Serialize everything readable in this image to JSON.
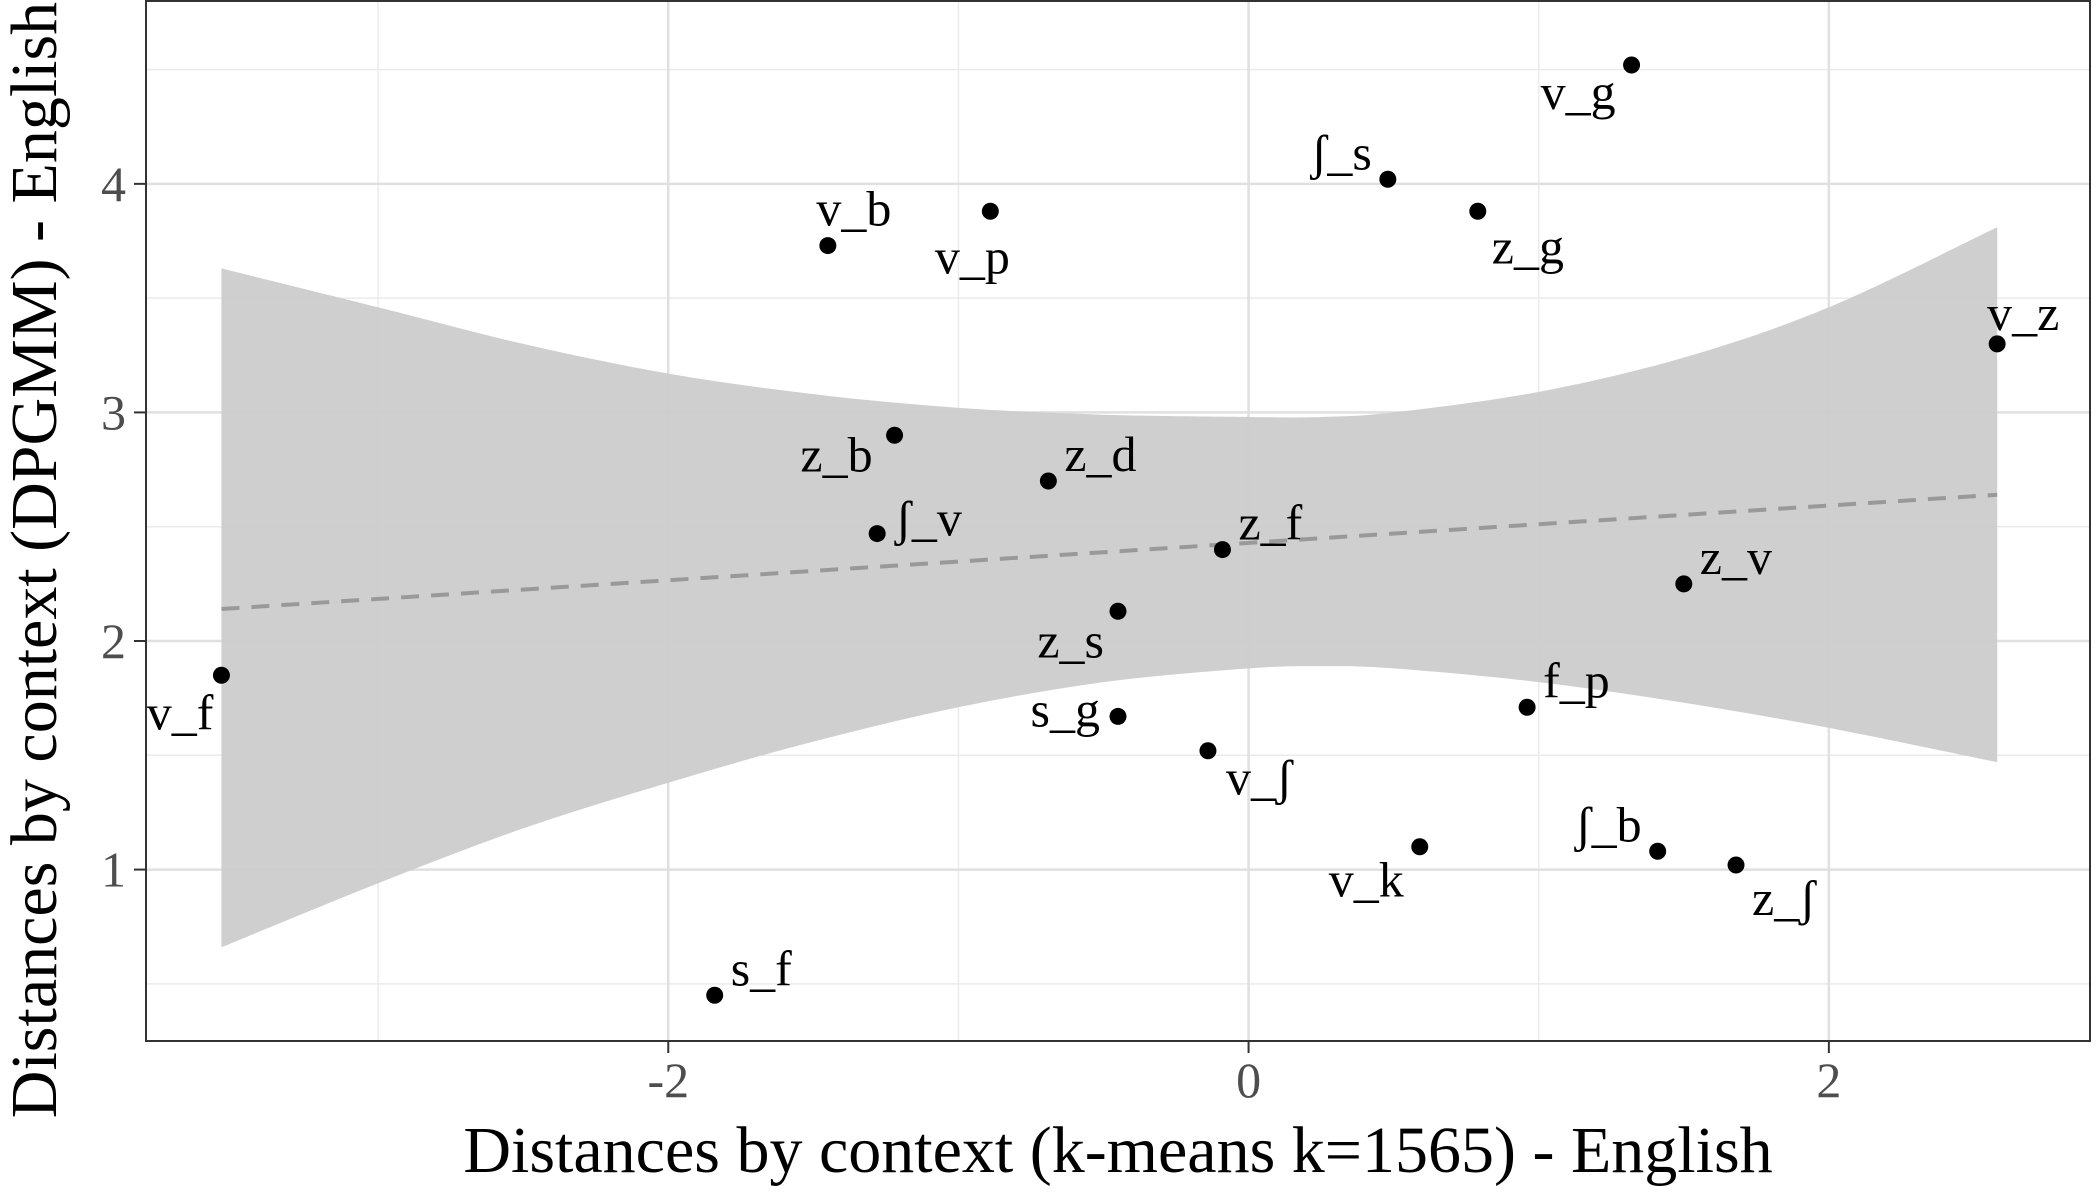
{
  "chart_data": {
    "type": "scatter",
    "xlabel": "Distances by context (k-means k=1565) - English",
    "ylabel": "Distances by context (DPGMM) - English",
    "xlim": [
      -3.8,
      2.9
    ],
    "ylim": [
      0.25,
      4.8
    ],
    "x_ticks": [
      -2,
      0,
      2
    ],
    "x_tick_labels": [
      "-2",
      "0",
      "2"
    ],
    "y_ticks": [
      1,
      2,
      3,
      4
    ],
    "y_tick_labels": [
      "1",
      "2",
      "3",
      "4"
    ],
    "grid": true,
    "legend": "none",
    "points": [
      {
        "label": "v_f",
        "x": -3.54,
        "y": 1.85
      },
      {
        "label": "s_f",
        "x": -1.84,
        "y": 0.45
      },
      {
        "label": "v_b",
        "x": -1.45,
        "y": 3.73
      },
      {
        "label": "v_p",
        "x": -0.89,
        "y": 3.88
      },
      {
        "label": "z_b",
        "x": -1.22,
        "y": 2.9
      },
      {
        "label": "ʃ_v",
        "x": -1.28,
        "y": 2.47
      },
      {
        "label": "z_d",
        "x": -0.69,
        "y": 2.7
      },
      {
        "label": "z_s",
        "x": -0.45,
        "y": 2.13
      },
      {
        "label": "s_g",
        "x": -0.45,
        "y": 1.67
      },
      {
        "label": "z_f",
        "x": -0.09,
        "y": 2.4
      },
      {
        "label": "v_ʃ",
        "x": -0.14,
        "y": 1.52
      },
      {
        "label": "ʃ_s",
        "x": 0.48,
        "y": 4.02
      },
      {
        "label": "z_g",
        "x": 0.79,
        "y": 3.88
      },
      {
        "label": "v_g",
        "x": 1.32,
        "y": 4.52
      },
      {
        "label": "v_k",
        "x": 0.59,
        "y": 1.1
      },
      {
        "label": "f_p",
        "x": 0.96,
        "y": 1.71
      },
      {
        "label": "ʃ_b",
        "x": 1.41,
        "y": 1.08
      },
      {
        "label": "z_v",
        "x": 1.5,
        "y": 2.25
      },
      {
        "label": "z_ʃ",
        "x": 1.68,
        "y": 1.02
      },
      {
        "label": "v_z",
        "x": 2.58,
        "y": 3.3
      }
    ],
    "fit_line": {
      "x": [
        -3.54,
        2.58
      ],
      "y": [
        2.14,
        2.64
      ],
      "style": "dashed",
      "color": "#999999"
    },
    "confidence_band": {
      "color": "#cccccc",
      "x": [
        -3.54,
        -3.0,
        -2.5,
        -2.0,
        -1.5,
        -1.0,
        -0.5,
        0.0,
        0.25,
        0.5,
        1.0,
        1.5,
        2.0,
        2.58
      ],
      "upper": [
        3.63,
        3.46,
        3.3,
        3.17,
        3.08,
        3.02,
        2.99,
        2.98,
        2.98,
        3.0,
        3.09,
        3.24,
        3.46,
        3.81
      ],
      "lower": [
        0.66,
        0.94,
        1.18,
        1.38,
        1.56,
        1.71,
        1.82,
        1.88,
        1.89,
        1.88,
        1.82,
        1.73,
        1.62,
        1.47
      ]
    }
  }
}
